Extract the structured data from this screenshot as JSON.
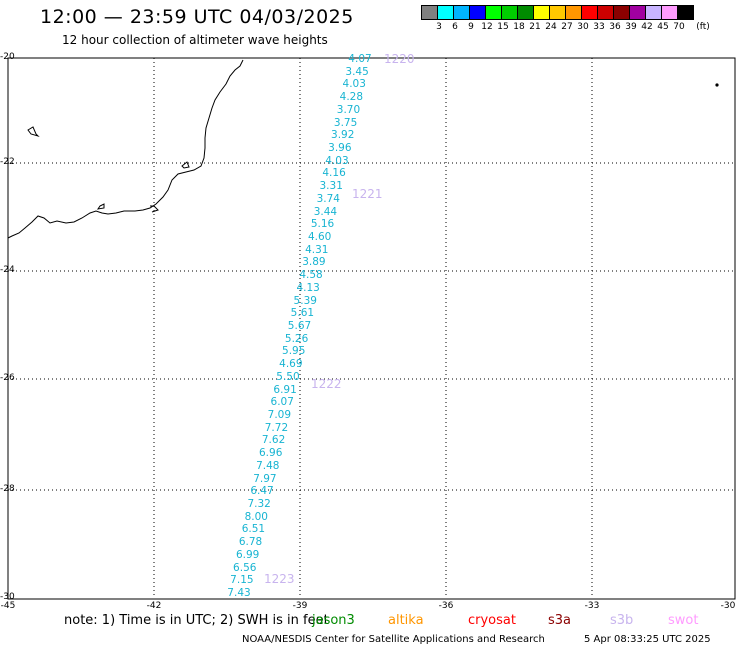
{
  "header": {
    "title": "12:00 — 23:59 UTC 04/03/2025",
    "subtitle": "12 hour collection of altimeter wave heights"
  },
  "legend": {
    "colors": [
      "#808080",
      "#00ffff",
      "#00b4ff",
      "#0000ff",
      "#00ff00",
      "#00cd00",
      "#008b00",
      "#ffff00",
      "#ffc800",
      "#ff9600",
      "#ff0000",
      "#cd0000",
      "#8b0000",
      "#a000a0",
      "#c8b4ff",
      "#ff9bff",
      "#000000"
    ],
    "labels": [
      "3",
      "6",
      "9",
      "12",
      "15",
      "18",
      "21",
      "24",
      "27",
      "30",
      "33",
      "36",
      "39",
      "42",
      "45",
      "70",
      "(ft)"
    ]
  },
  "map": {
    "lat_labels": [
      "-20",
      "-22",
      "-24",
      "-26",
      "-28",
      "-30"
    ],
    "lon_labels": [
      "-45",
      "-42",
      "-39",
      "-36",
      "-33",
      "-30"
    ],
    "swh_values": [
      "4.07",
      "3.45",
      "4.03",
      "4.28",
      "3.70",
      "3.75",
      "3.92",
      "3.96",
      "4.03",
      "4.16",
      "3.31",
      "3.74",
      "3.44",
      "5.16",
      "4.60",
      "4.31",
      "3.89",
      "4.58",
      "4.13",
      "5.39",
      "5.61",
      "5.67",
      "5.26",
      "5.95",
      "4.69",
      "5.50",
      "6.91",
      "6.07",
      "7.09",
      "7.72",
      "7.62",
      "6.96",
      "7.48",
      "7.97",
      "6.47",
      "7.32",
      "8.00",
      "6.51",
      "6.78",
      "6.99",
      "6.56",
      "7.15",
      "7.43"
    ],
    "pass_labels": [
      "1220",
      "1221",
      "1222",
      "1223"
    ]
  },
  "footer": {
    "note": "note:  1) Time is in UTC;  2) SWH is in feet",
    "satellites": [
      {
        "name": "jason3",
        "color": "#008b00"
      },
      {
        "name": "altika",
        "color": "#ff9600"
      },
      {
        "name": "cryosat",
        "color": "#ff0000"
      },
      {
        "name": "s3a",
        "color": "#8b0000"
      },
      {
        "name": "s3b",
        "color": "#c8b4ee"
      },
      {
        "name": "swot",
        "color": "#ff9bff"
      }
    ],
    "credit": "NOAA/NESDIS Center for Satellite Applications and Research",
    "timestamp": "5 Apr 08:33:25 UTC 2025"
  }
}
